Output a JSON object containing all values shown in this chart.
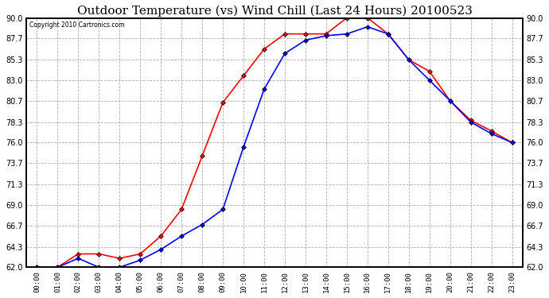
{
  "title": "Outdoor Temperature (vs) Wind Chill (Last 24 Hours) 20100523",
  "copyright": "Copyright 2010 Cartronics.com",
  "x_labels": [
    "00:00",
    "01:00",
    "02:00",
    "03:00",
    "04:00",
    "05:00",
    "06:00",
    "07:00",
    "08:00",
    "09:00",
    "10:00",
    "11:00",
    "12:00",
    "13:00",
    "14:00",
    "15:00",
    "16:00",
    "17:00",
    "18:00",
    "19:00",
    "20:00",
    "21:00",
    "22:00",
    "23:00"
  ],
  "temp_red": [
    62.0,
    62.0,
    63.5,
    63.5,
    63.0,
    63.5,
    65.5,
    68.5,
    74.5,
    80.5,
    83.5,
    86.5,
    88.2,
    88.2,
    88.2,
    90.0,
    90.0,
    88.2,
    85.3,
    84.0,
    80.7,
    78.5,
    77.3,
    76.0
  ],
  "temp_blue": [
    62.0,
    62.0,
    63.0,
    62.0,
    62.0,
    62.8,
    64.0,
    65.5,
    66.8,
    68.5,
    75.5,
    82.0,
    86.0,
    87.5,
    88.0,
    88.2,
    89.0,
    88.2,
    85.3,
    83.0,
    80.7,
    78.3,
    77.0,
    76.0
  ],
  "ylim": [
    62.0,
    90.0
  ],
  "yticks": [
    62.0,
    64.3,
    66.7,
    69.0,
    71.3,
    73.7,
    76.0,
    78.3,
    80.7,
    83.0,
    85.3,
    87.7,
    90.0
  ],
  "red_color": "#ff0000",
  "blue_color": "#0000ff",
  "background_color": "#ffffff",
  "grid_color": "#b0b0b0",
  "title_fontsize": 11,
  "marker_size": 3,
  "line_width": 1.2
}
